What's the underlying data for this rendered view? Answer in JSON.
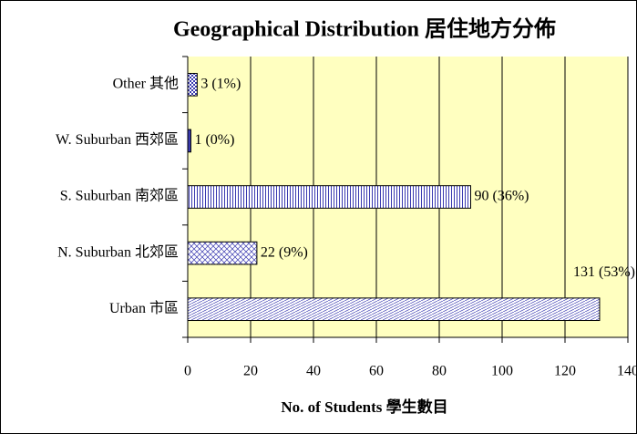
{
  "chart_data": {
    "type": "bar",
    "orientation": "horizontal",
    "title": "Geographical Distribution 居住地方分佈",
    "x_label": "No. of Students 學生數目",
    "categories": [
      "Other 其他",
      "W. Suburban 西郊區",
      "S. Suburban 南郊區",
      "N. Suburban 北郊區",
      "Urban 市區"
    ],
    "values": [
      3,
      1,
      90,
      22,
      131
    ],
    "value_labels": [
      "3 (1%)",
      "1 (0%)",
      "90 (36%)",
      "22 (9%)",
      "131 (53%)"
    ],
    "color": "#3a3ab0",
    "xlim": [
      0,
      140
    ],
    "xticks": [
      0,
      20,
      40,
      60,
      80,
      100,
      120,
      140
    ],
    "grid": true
  }
}
